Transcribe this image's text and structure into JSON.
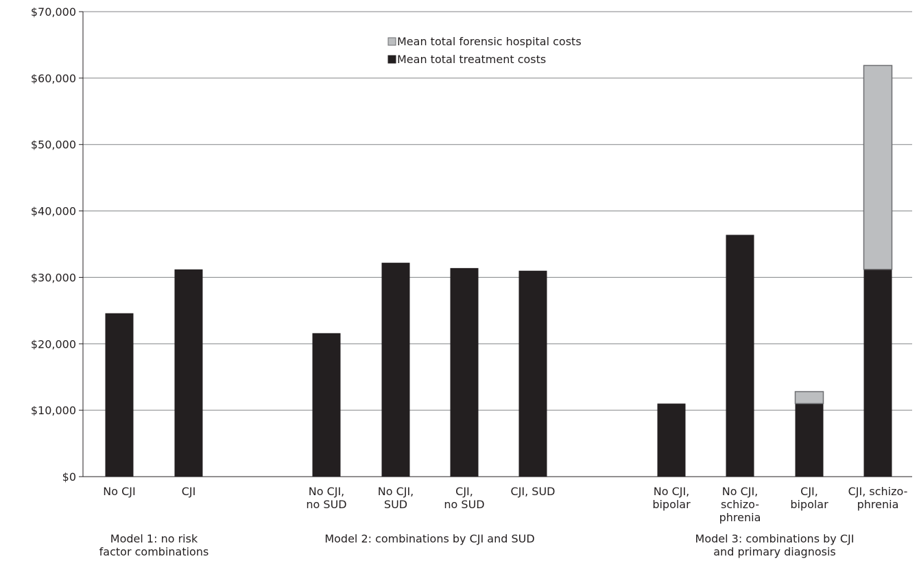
{
  "chart_data": {
    "type": "bar",
    "stacked": true,
    "title": "",
    "xlabel": "",
    "ylabel": "",
    "ylim": [
      0,
      70000
    ],
    "yticks": [
      0,
      10000,
      20000,
      30000,
      40000,
      50000,
      60000,
      70000
    ],
    "ytick_labels": [
      "$0",
      "$10,000",
      "$20,000",
      "$30,000",
      "$40,000",
      "$50,000",
      "$60,000",
      "$70,000"
    ],
    "grid": true,
    "legend_position": "top-center",
    "categories": [
      [
        "No CJI"
      ],
      [
        "CJI"
      ],
      [
        "No CJI,",
        "no SUD"
      ],
      [
        "No CJI,",
        "SUD"
      ],
      [
        "CJI,",
        "no SUD"
      ],
      [
        "CJI, SUD"
      ],
      [
        "No CJI,",
        "bipolar"
      ],
      [
        "No CJI,",
        "schizo-",
        "phrenia"
      ],
      [
        "CJI,",
        "bipolar"
      ],
      [
        "CJI, schizo-",
        "phrenia"
      ]
    ],
    "groups": [
      {
        "lines": [
          "Model 1: no risk",
          "factor combinations"
        ],
        "members": [
          0,
          1
        ]
      },
      {
        "lines": [
          "Model 2: combinations by CJI and SUD"
        ],
        "members": [
          2,
          3,
          4,
          5
        ]
      },
      {
        "lines": [
          "Model 3: combinations by CJI",
          "and primary diagnosis"
        ],
        "members": [
          6,
          7,
          8,
          9
        ]
      }
    ],
    "series": [
      {
        "name": "Mean total treatment costs",
        "color": "#231f20",
        "values": [
          24600,
          31200,
          21600,
          32200,
          31400,
          31000,
          11000,
          36400,
          11000,
          31200
        ]
      },
      {
        "name": "Mean total forensic hospital costs",
        "color": "#bcbec0",
        "values": [
          0,
          0,
          0,
          0,
          0,
          0,
          0,
          0,
          1800,
          30700
        ]
      }
    ],
    "legend_order": [
      "Mean total forensic hospital costs",
      "Mean total treatment costs"
    ]
  }
}
